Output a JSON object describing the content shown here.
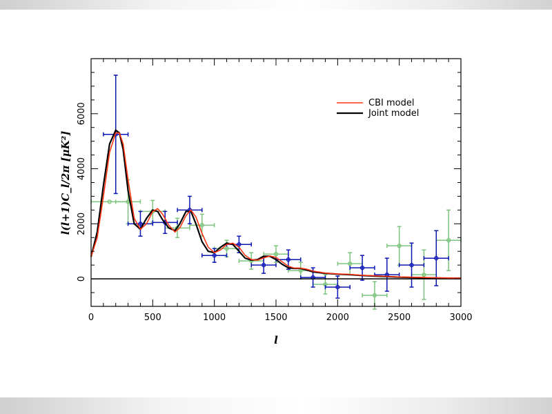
{
  "chart_data": {
    "type": "line",
    "xlabel": "l",
    "ylabel": "l(l+1)C_l/2π [μK²]",
    "xlim": [
      0,
      3000
    ],
    "ylim": [
      -1000,
      8000
    ],
    "x_ticks": [
      0,
      500,
      1000,
      1500,
      2000,
      2500,
      3000
    ],
    "y_ticks": [
      0,
      2000,
      4000,
      6000
    ],
    "legend_position": "top-right",
    "colors": {
      "cbi_model": "#ff3311",
      "joint_model": "#000000",
      "cbi_points": "#0a14b4",
      "other_points": "#7cc47c",
      "zero_line": "#000000"
    },
    "series": [
      {
        "name": "Joint model",
        "type": "line",
        "x": [
          0,
          50,
          100,
          150,
          200,
          230,
          260,
          300,
          350,
          400,
          450,
          500,
          540,
          580,
          630,
          680,
          720,
          770,
          810,
          850,
          900,
          950,
          1000,
          1050,
          1100,
          1150,
          1200,
          1250,
          1300,
          1350,
          1400,
          1450,
          1500,
          1550,
          1600,
          1650,
          1700,
          1750,
          1800,
          1900,
          2000,
          2100,
          2200,
          2300,
          2400,
          2500,
          2600,
          2800,
          3000
        ],
        "y": [
          800,
          1700,
          3400,
          4900,
          5400,
          5300,
          4700,
          3200,
          2000,
          1800,
          2200,
          2500,
          2450,
          2150,
          1850,
          1750,
          2000,
          2450,
          2450,
          2000,
          1350,
          1000,
          950,
          1150,
          1300,
          1250,
          1000,
          750,
          680,
          700,
          820,
          820,
          700,
          530,
          400,
          380,
          380,
          320,
          250,
          200,
          170,
          150,
          120,
          100,
          80,
          60,
          50,
          30,
          20
        ]
      },
      {
        "name": "CBI model",
        "type": "line",
        "x": [
          0,
          50,
          100,
          150,
          200,
          230,
          260,
          300,
          350,
          400,
          450,
          500,
          540,
          580,
          630,
          680,
          720,
          770,
          810,
          850,
          900,
          950,
          1000,
          1050,
          1100,
          1150,
          1200,
          1250,
          1300,
          1350,
          1400,
          1450,
          1500,
          1550,
          1600,
          1650,
          1700,
          1750,
          1800,
          1900,
          2000,
          2100,
          2200,
          2300,
          2400,
          2500,
          2600,
          2800,
          3000
        ],
        "y": [
          800,
          1500,
          3000,
          4600,
          5300,
          5300,
          4900,
          3600,
          2200,
          1800,
          2000,
          2450,
          2550,
          2350,
          1950,
          1700,
          1850,
          2300,
          2500,
          2250,
          1650,
          1150,
          950,
          1050,
          1250,
          1300,
          1150,
          850,
          700,
          680,
          760,
          830,
          780,
          620,
          460,
          390,
          390,
          350,
          280,
          210,
          180,
          160,
          130,
          110,
          90,
          70,
          60,
          40,
          25
        ]
      },
      {
        "name": "",
        "type": "errorbar",
        "points": [
          {
            "x": 200,
            "y": 5250,
            "xerr": [
              100,
              100
            ],
            "yerr": [
              2150,
              2150
            ]
          },
          {
            "x": 400,
            "y": 2000,
            "xerr": [
              100,
              100
            ],
            "yerr": [
              450,
              450
            ]
          },
          {
            "x": 600,
            "y": 2050,
            "xerr": [
              100,
              100
            ],
            "yerr": [
              400,
              400
            ]
          },
          {
            "x": 800,
            "y": 2500,
            "xerr": [
              100,
              100
            ],
            "yerr": [
              500,
              500
            ]
          },
          {
            "x": 1000,
            "y": 850,
            "xerr": [
              100,
              100
            ],
            "yerr": [
              250,
              250
            ]
          },
          {
            "x": 1200,
            "y": 1250,
            "xerr": [
              100,
              100
            ],
            "yerr": [
              300,
              300
            ]
          },
          {
            "x": 1400,
            "y": 500,
            "xerr": [
              100,
              100
            ],
            "yerr": [
              300,
              300
            ]
          },
          {
            "x": 1600,
            "y": 700,
            "xerr": [
              100,
              100
            ],
            "yerr": [
              350,
              350
            ]
          },
          {
            "x": 1800,
            "y": 50,
            "xerr": [
              100,
              100
            ],
            "yerr": [
              350,
              350
            ]
          },
          {
            "x": 2000,
            "y": -300,
            "xerr": [
              100,
              100
            ],
            "yerr": [
              400,
              400
            ]
          },
          {
            "x": 2200,
            "y": 400,
            "xerr": [
              100,
              100
            ],
            "yerr": [
              450,
              450
            ]
          },
          {
            "x": 2400,
            "y": 150,
            "xerr": [
              100,
              100
            ],
            "yerr": [
              600,
              600
            ]
          },
          {
            "x": 2600,
            "y": 500,
            "xerr": [
              100,
              100
            ],
            "yerr": [
              800,
              800
            ]
          },
          {
            "x": 2800,
            "y": 750,
            "xerr": [
              100,
              100
            ],
            "yerr": [
              1000,
              1000
            ]
          }
        ]
      },
      {
        "name": "",
        "type": "errorbar",
        "points": [
          {
            "x": 150,
            "y": 2800,
            "xerr": [
              150,
              150
            ],
            "yerr": [
              0,
              0
            ]
          },
          {
            "x": 300,
            "y": 2800,
            "xerr": [
              100,
              100
            ],
            "yerr": [
              800,
              800
            ]
          },
          {
            "x": 500,
            "y": 2450,
            "xerr": [
              100,
              100
            ],
            "yerr": [
              400,
              400
            ]
          },
          {
            "x": 700,
            "y": 1850,
            "xerr": [
              100,
              100
            ],
            "yerr": [
              350,
              350
            ]
          },
          {
            "x": 900,
            "y": 1950,
            "xerr": [
              100,
              100
            ],
            "yerr": [
              400,
              400
            ]
          },
          {
            "x": 1100,
            "y": 1100,
            "xerr": [
              100,
              100
            ],
            "yerr": [
              300,
              300
            ]
          },
          {
            "x": 1300,
            "y": 650,
            "xerr": [
              100,
              100
            ],
            "yerr": [
              300,
              300
            ]
          },
          {
            "x": 1500,
            "y": 900,
            "xerr": [
              100,
              100
            ],
            "yerr": [
              300,
              300
            ]
          },
          {
            "x": 1700,
            "y": 300,
            "xerr": [
              100,
              100
            ],
            "yerr": [
              300,
              300
            ]
          },
          {
            "x": 1900,
            "y": -200,
            "xerr": [
              100,
              100
            ],
            "yerr": [
              350,
              350
            ]
          },
          {
            "x": 2100,
            "y": 550,
            "xerr": [
              100,
              100
            ],
            "yerr": [
              400,
              400
            ]
          },
          {
            "x": 2300,
            "y": -600,
            "xerr": [
              100,
              100
            ],
            "yerr": [
              500,
              500
            ]
          },
          {
            "x": 2500,
            "y": 1200,
            "xerr": [
              100,
              100
            ],
            "yerr": [
              700,
              700
            ]
          },
          {
            "x": 2700,
            "y": 150,
            "xerr": [
              100,
              100
            ],
            "yerr": [
              900,
              900
            ]
          },
          {
            "x": 2900,
            "y": 1400,
            "xerr": [
              100,
              100
            ],
            "yerr": [
              1100,
              1100
            ]
          }
        ]
      }
    ]
  }
}
